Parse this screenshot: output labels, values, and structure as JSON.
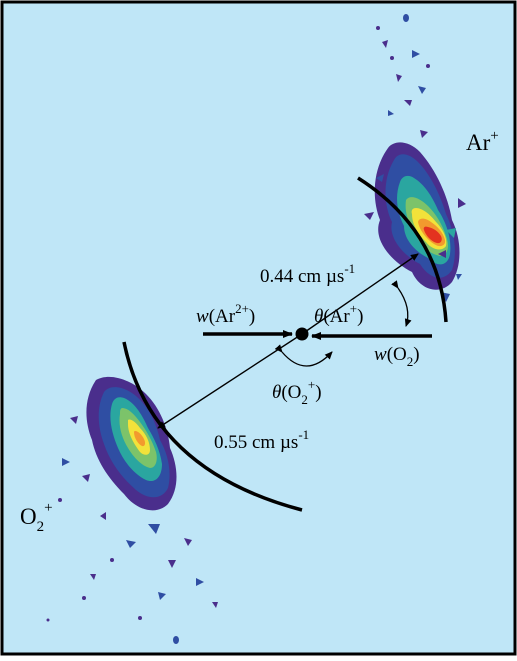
{
  "colors": {
    "background": "#bfe6f7",
    "frame": "#000000",
    "contour_levels": [
      "#4a2e8c",
      "#2f4ea3",
      "#2aa6a0",
      "#7cc36a",
      "#f2e23a",
      "#f29a2e",
      "#e3321f"
    ]
  },
  "labels": {
    "ar_plus": "Ar",
    "ar_plus_sup": "+",
    "o2_plus": "O",
    "o2_plus_sub": "2",
    "o2_plus_sup": "+",
    "vel_ar": "0.44 cm µs",
    "vel_ar_sup": "-1",
    "vel_o2": "0.55 cm µs",
    "vel_o2_sup": "-1",
    "w_ar2": "w",
    "w_ar2_species": "(Ar",
    "w_ar2_sup": "2+",
    "w_ar2_close": ")",
    "w_o2": "w",
    "w_o2_species": "(O",
    "w_o2_sub": "2",
    "w_o2_close": ")",
    "theta_ar": "θ",
    "theta_ar_species": "(Ar",
    "theta_ar_sup": "+",
    "theta_ar_close": ")",
    "theta_o2": "θ",
    "theta_o2_species": "(O",
    "theta_o2_sub": "2",
    "theta_o2_sup": "+",
    "theta_o2_close": ")"
  }
}
